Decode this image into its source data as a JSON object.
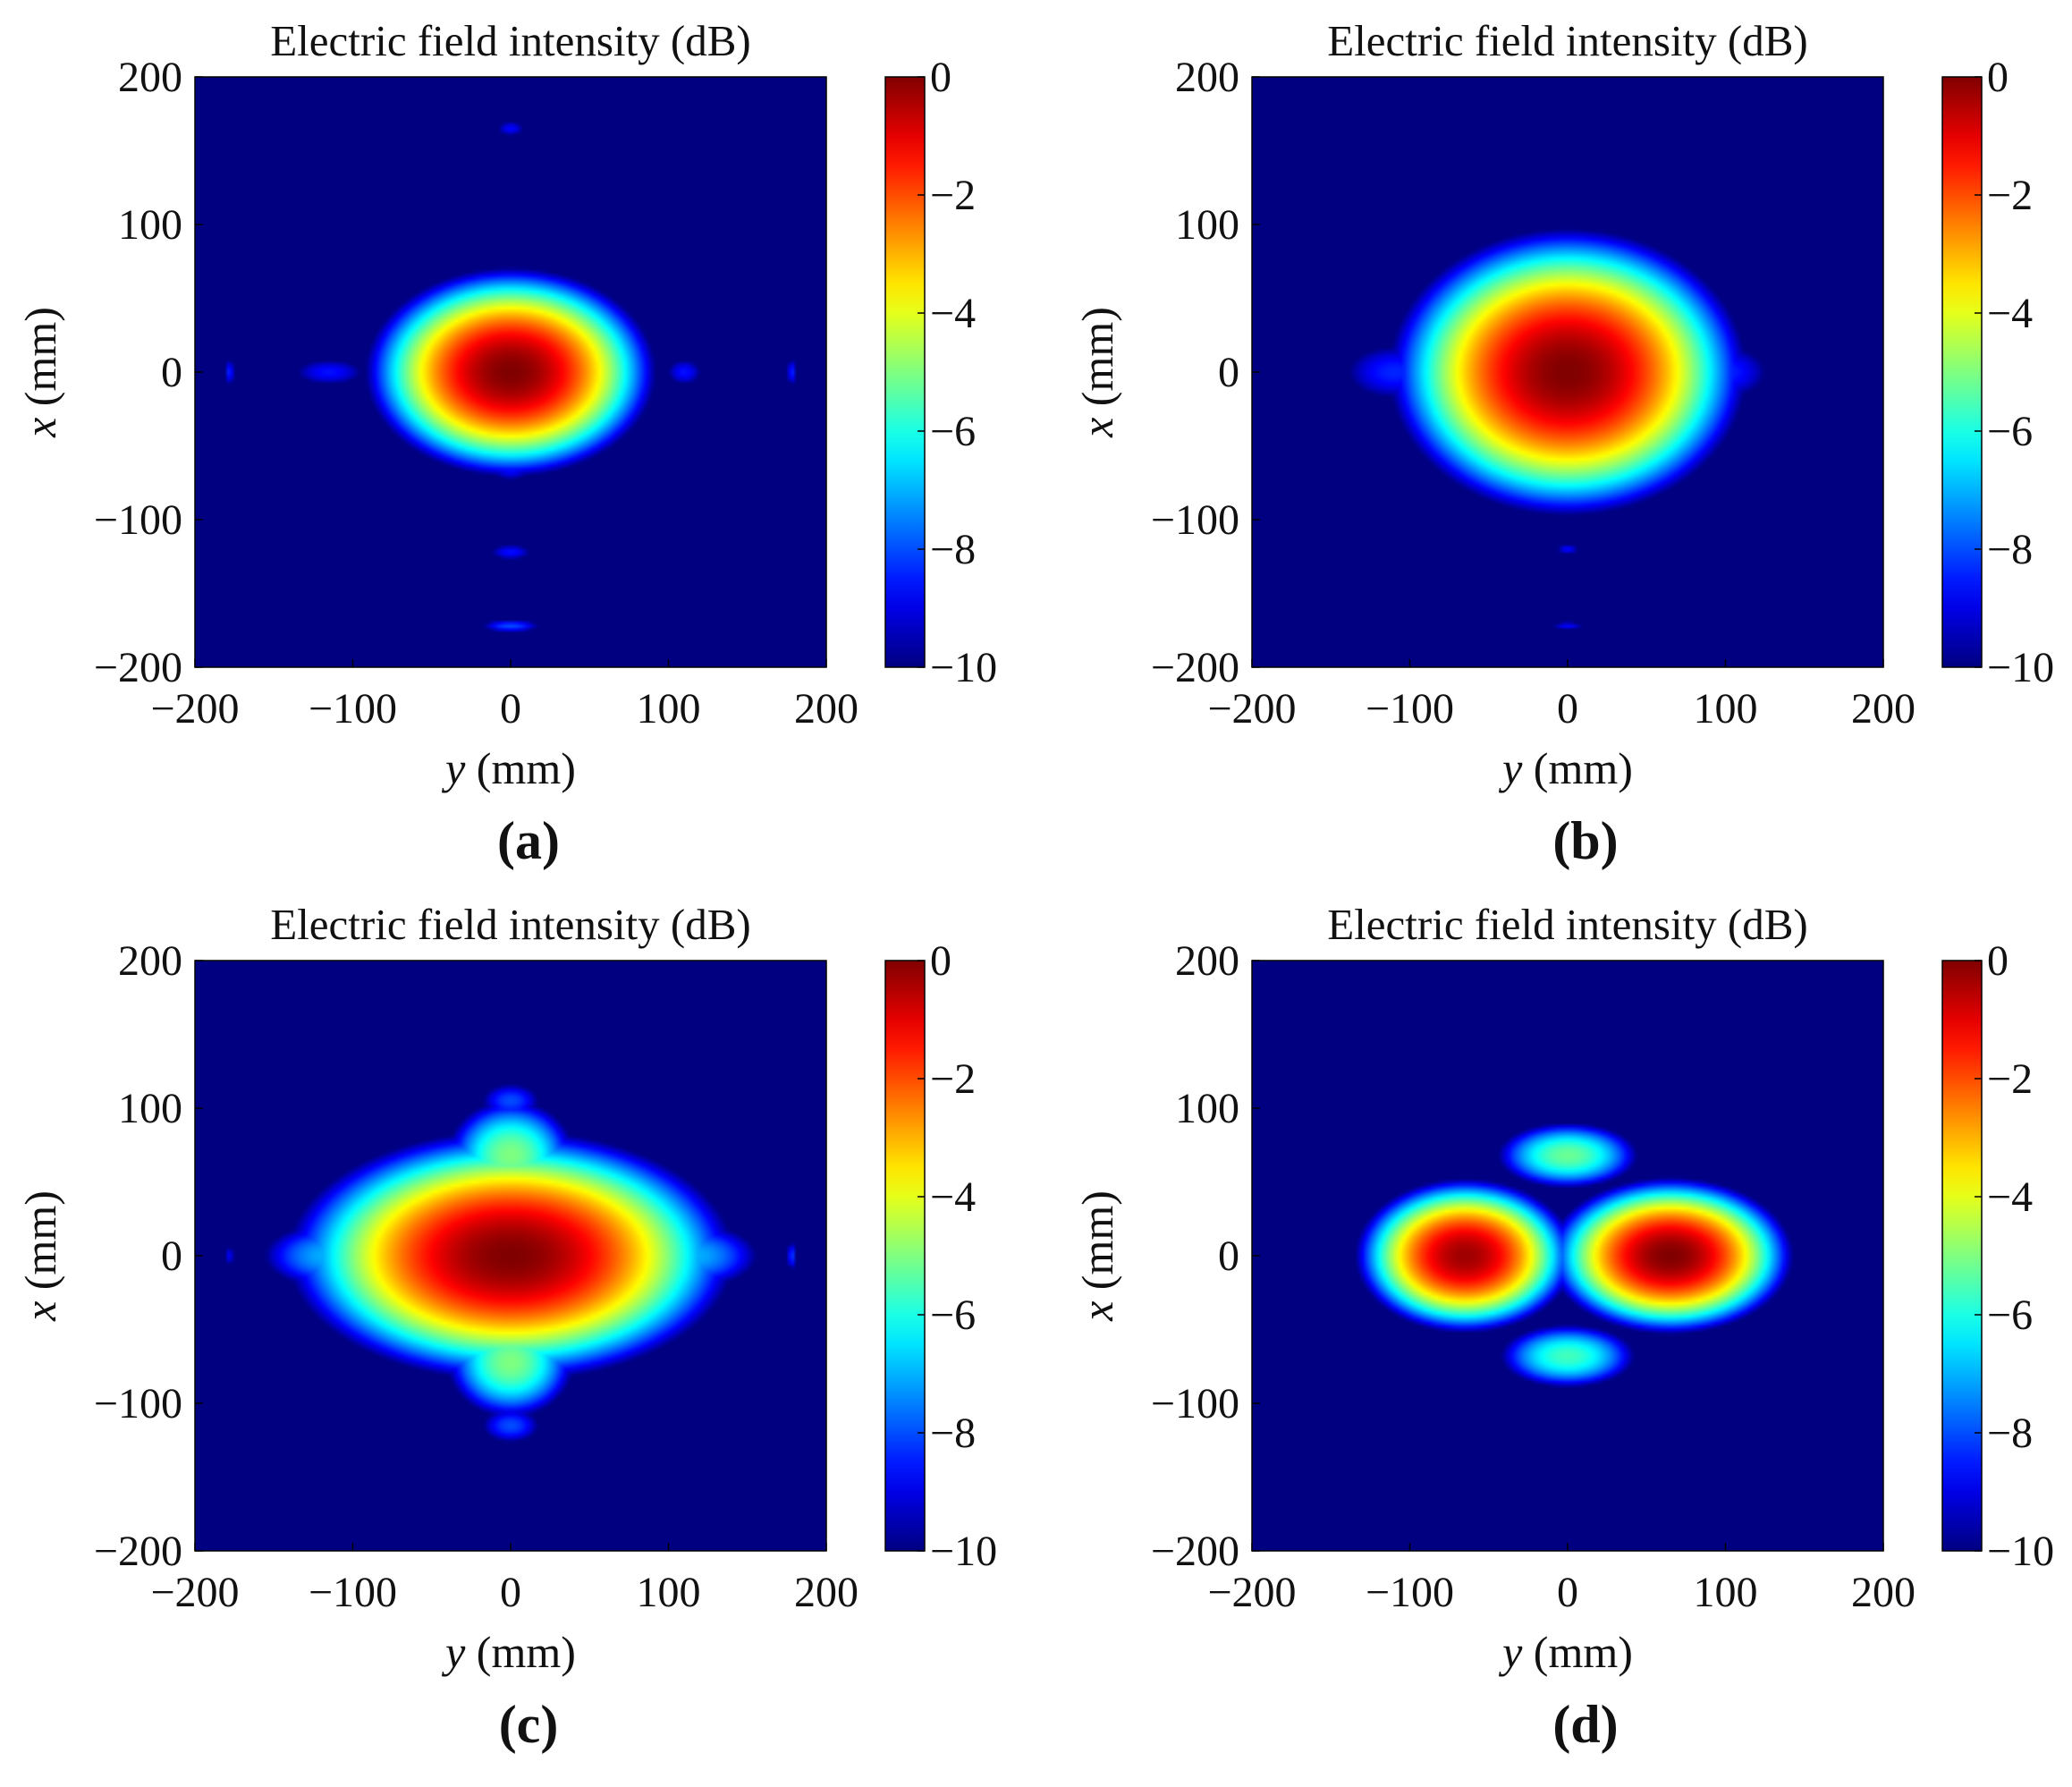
{
  "chart_data": [
    {
      "panel": "(a)",
      "type": "heatmap",
      "title": "Electric field intensity (dB)",
      "xlabel": "y (mm)",
      "ylabel": "x (mm)",
      "xlim": [
        -200,
        200
      ],
      "ylim": [
        -200,
        200
      ],
      "xticks": [
        -200,
        -100,
        0,
        100,
        200
      ],
      "yticks": [
        200,
        100,
        0,
        -100,
        -200
      ],
      "colorbar": {
        "range": [
          -10,
          0
        ],
        "ticks": [
          0,
          -2,
          -4,
          -6,
          -8,
          -10
        ],
        "colormap": "jet"
      },
      "features": [
        {
          "y": 0,
          "x": 0,
          "sy": 52,
          "sx": 40,
          "peak_dB": 0
        },
        {
          "y": -115,
          "x": 0,
          "sy": 30,
          "sx": 12,
          "peak_dB": -8.6
        },
        {
          "y": 110,
          "x": 0,
          "sy": 15,
          "sx": 12,
          "peak_dB": -8.6
        },
        {
          "y": 0,
          "x": 165,
          "sy": 12,
          "sx": 7,
          "peak_dB": -8.7
        },
        {
          "y": 0,
          "x": -65,
          "sy": 18,
          "sx": 12,
          "peak_dB": -8.6
        },
        {
          "y": 0,
          "x": -122,
          "sy": 18,
          "sx": 7,
          "peak_dB": -8.6
        },
        {
          "y": 0,
          "x": -172,
          "sy": 22,
          "sx": 5,
          "peak_dB": -8.0
        },
        {
          "y": -178,
          "x": 0,
          "sy": 3,
          "sx": 12,
          "peak_dB": -8.2
        },
        {
          "y": 178,
          "x": 0,
          "sy": 3,
          "sx": 12,
          "peak_dB": -8.2
        }
      ]
    },
    {
      "panel": "(b)",
      "type": "heatmap",
      "title": "Electric field intensity (dB)",
      "xlabel": "y (mm)",
      "ylabel": "x (mm)",
      "xlim": [
        -200,
        200
      ],
      "ylim": [
        -200,
        200
      ],
      "xticks": [
        -200,
        -100,
        0,
        100,
        200
      ],
      "yticks": [
        200,
        100,
        0,
        -100,
        -200
      ],
      "colorbar": {
        "range": [
          -10,
          0
        ],
        "ticks": [
          0,
          -2,
          -4,
          -6,
          -8,
          -10
        ],
        "colormap": "jet"
      },
      "features": [
        {
          "y": 0,
          "x": 0,
          "sy": 64,
          "sx": 55,
          "peak_dB": 0
        },
        {
          "y": -110,
          "x": 0,
          "sy": 40,
          "sx": 24,
          "peak_dB": -8.4
        },
        {
          "y": 100,
          "x": 0,
          "sy": 35,
          "sx": 24,
          "peak_dB": -8.4
        },
        {
          "y": 0,
          "x": 62,
          "sy": 38,
          "sx": 28,
          "peak_dB": -8.2
        },
        {
          "y": 0,
          "x": -62,
          "sy": 38,
          "sx": 28,
          "peak_dB": -8.2
        },
        {
          "y": 0,
          "x": -120,
          "sy": 10,
          "sx": 5,
          "peak_dB": -8.7
        },
        {
          "y": 0,
          "x": -172,
          "sy": 14,
          "sx": 4,
          "peak_dB": -8.7
        }
      ]
    },
    {
      "panel": "(c)",
      "type": "heatmap",
      "title": "Electric field intensity (dB)",
      "xlabel": "y (mm)",
      "ylabel": "x (mm)",
      "xlim": [
        -200,
        200
      ],
      "ylim": [
        -200,
        200
      ],
      "xticks": [
        -200,
        -100,
        0,
        100,
        200
      ],
      "yticks": [
        200,
        100,
        0,
        -100,
        -200
      ],
      "colorbar": {
        "range": [
          -10,
          0
        ],
        "ticks": [
          0,
          -2,
          -4,
          -6,
          -8,
          -10
        ],
        "colormap": "jet"
      },
      "features": [
        {
          "y": 0,
          "x": 0,
          "sy": 80,
          "sx": 48,
          "peak_dB": 0
        },
        {
          "y": 0,
          "x": 68,
          "sy": 32,
          "sx": 30,
          "peak_dB": -5.0
        },
        {
          "y": 0,
          "x": -72,
          "sy": 32,
          "sx": 30,
          "peak_dB": -5.0
        },
        {
          "y": -115,
          "x": 0,
          "sy": 42,
          "sx": 22,
          "peak_dB": -7.0
        },
        {
          "y": 115,
          "x": 0,
          "sy": 42,
          "sx": 22,
          "peak_dB": -7.0
        },
        {
          "y": 0,
          "x": 105,
          "sy": 22,
          "sx": 14,
          "peak_dB": -8.0
        },
        {
          "y": 0,
          "x": -115,
          "sy": 22,
          "sx": 14,
          "peak_dB": -8.0
        },
        {
          "y": 178,
          "x": 0,
          "sy": 3,
          "sx": 12,
          "peak_dB": -8.0
        },
        {
          "y": -178,
          "x": 0,
          "sy": 3,
          "sx": 10,
          "peak_dB": -8.6
        }
      ]
    },
    {
      "panel": "(d)",
      "type": "heatmap",
      "title": "Electric field intensity (dB)",
      "xlabel": "y (mm)",
      "ylabel": "x (mm)",
      "xlim": [
        -200,
        200
      ],
      "ylim": [
        -200,
        200
      ],
      "xticks": [
        -200,
        -100,
        0,
        100,
        200
      ],
      "yticks": [
        200,
        100,
        0,
        -100,
        -200
      ],
      "colorbar": {
        "range": [
          -10,
          0
        ],
        "ticks": [
          0,
          -2,
          -4,
          -6,
          -8,
          -10
        ],
        "colormap": "jet"
      },
      "features": [
        {
          "y": -65,
          "x": 0,
          "sy": 40,
          "sx": 30,
          "peak_dB": -0.3
        },
        {
          "y": 65,
          "x": 0,
          "sy": 44,
          "sx": 30,
          "peak_dB": 0
        },
        {
          "y": 0,
          "x": 68,
          "sy": 36,
          "sx": 18,
          "peak_dB": -5.2
        },
        {
          "y": 0,
          "x": -68,
          "sy": 36,
          "sx": 18,
          "peak_dB": -5.6
        },
        {
          "y": 0,
          "x": 0,
          "sy": 12,
          "sx": 8,
          "peak_dB": -7.5
        }
      ]
    }
  ]
}
